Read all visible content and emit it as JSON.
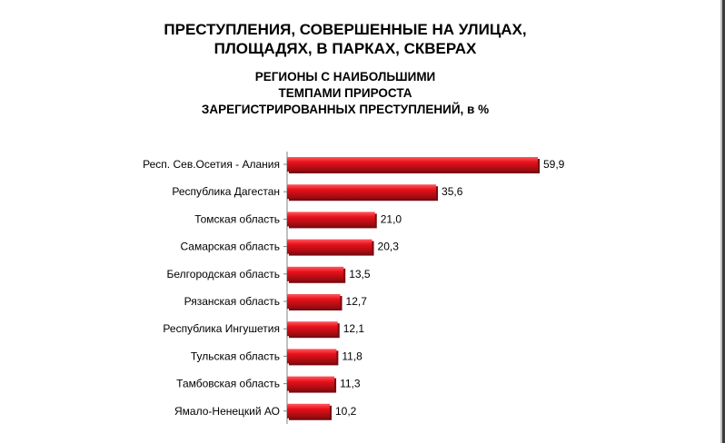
{
  "title": {
    "line1": "ПРЕСТУПЛЕНИЯ, СОВЕРШЕННЫЕ НА УЛИЦАХ,",
    "line2": "ПЛОЩАДЯХ, В ПАРКАХ, СКВЕРАХ"
  },
  "subtitle": {
    "line1": "РЕГИОНЫ С НАИБОЛЬШИМИ",
    "line2": "ТЕМПАМИ ПРИРОСТА",
    "line3": "ЗАРЕГИСТРИРОВАННЫХ ПРЕСТУПЛЕНИЙ, в %"
  },
  "colors": {
    "bar": "#e8111b",
    "bar_highlight": "#ff5a5f",
    "bar_shade": "#8f0a10",
    "axis": "#808080"
  },
  "chart_data": {
    "type": "bar",
    "orientation": "horizontal",
    "title": "ПРЕСТУПЛЕНИЯ, СОВЕРШЕННЫЕ НА УЛИЦАХ, ПЛОЩАДЯХ, В ПАРКАХ, СКВЕРАХ",
    "subtitle": "РЕГИОНЫ С НАИБОЛЬШИМИ ТЕМПАМИ ПРИРОСТА ЗАРЕГИСТРИРОВАННЫХ ПРЕСТУПЛЕНИЙ, в %",
    "categories": [
      "Респ. Сев.Осетия - Алания",
      "Республика Дагестан",
      "Томская область",
      "Самарская область",
      "Белгородская область",
      "Рязанская область",
      "Республика Ингушетия",
      "Тульская область",
      "Тамбовская область",
      "Ямало-Ненецкий АО"
    ],
    "values": [
      59.9,
      35.6,
      21.0,
      20.3,
      13.5,
      12.7,
      12.1,
      11.8,
      11.3,
      10.2
    ],
    "value_labels": [
      "59,9",
      "35,6",
      "21,0",
      "20,3",
      "13,5",
      "12,7",
      "12,1",
      "11,8",
      "11,3",
      "10,2"
    ],
    "xlim": [
      0,
      59.9
    ],
    "grid": false,
    "legend": "none"
  }
}
